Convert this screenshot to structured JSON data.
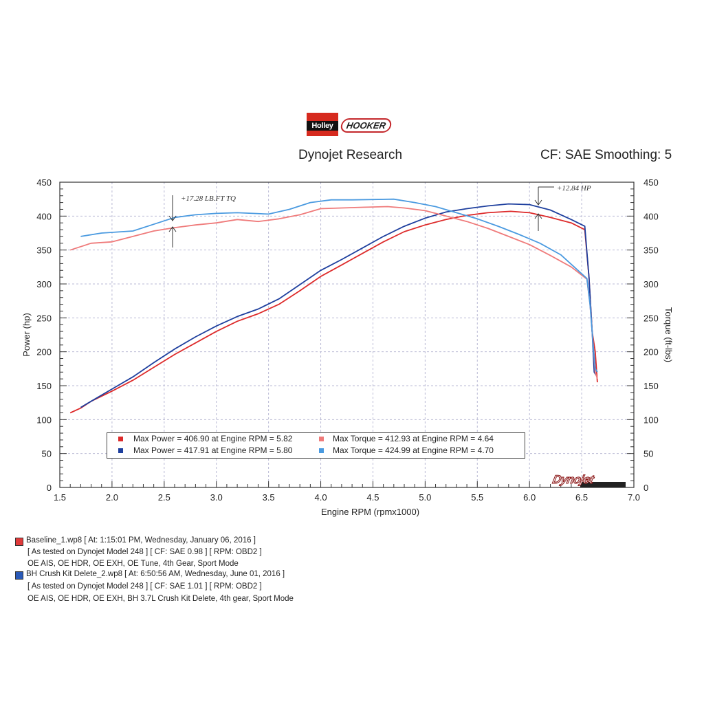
{
  "header": {
    "brand_left": "Holley",
    "brand_right": "HOOKER",
    "title": "Dynojet Research",
    "right_info": "CF: SAE Smoothing: 5"
  },
  "chart_data": {
    "type": "line",
    "x_axis": {
      "label": "Engine RPM (rpmx1000)",
      "range": [
        1.5,
        7.0
      ],
      "ticks": [
        "1.5",
        "2.0",
        "2.5",
        "3.0",
        "3.5",
        "4.0",
        "4.5",
        "5.0",
        "5.5",
        "6.0",
        "6.5",
        "7.0"
      ]
    },
    "y_axis_left": {
      "label": "Power (hp)",
      "range": [
        0,
        450
      ],
      "ticks": [
        "0",
        "50",
        "100",
        "150",
        "200",
        "250",
        "300",
        "350",
        "400",
        "450"
      ]
    },
    "y_axis_right": {
      "label": "Torque (ft-lbs)",
      "range": [
        0,
        450
      ],
      "ticks": [
        "0",
        "50",
        "100",
        "150",
        "200",
        "250",
        "300",
        "350",
        "400",
        "450"
      ]
    },
    "grid": true,
    "colors": {
      "baseline_power": "#dd2a2a",
      "crush_power": "#1e3f9e",
      "baseline_torque": "#ef7a7a",
      "crush_torque": "#4a9ae0"
    },
    "series": [
      {
        "run": "Baseline",
        "measure": "power",
        "points": [
          [
            1.6,
            110
          ],
          [
            1.7,
            117
          ],
          [
            1.8,
            127
          ],
          [
            2.0,
            142
          ],
          [
            2.2,
            158
          ],
          [
            2.4,
            177
          ],
          [
            2.6,
            196
          ],
          [
            2.8,
            213
          ],
          [
            3.0,
            230
          ],
          [
            3.2,
            245
          ],
          [
            3.4,
            256
          ],
          [
            3.6,
            270
          ],
          [
            3.8,
            290
          ],
          [
            4.0,
            311
          ],
          [
            4.2,
            328
          ],
          [
            4.4,
            345
          ],
          [
            4.6,
            362
          ],
          [
            4.8,
            377
          ],
          [
            5.0,
            387
          ],
          [
            5.2,
            395
          ],
          [
            5.4,
            401
          ],
          [
            5.6,
            405
          ],
          [
            5.82,
            407
          ],
          [
            6.0,
            405
          ],
          [
            6.2,
            398
          ],
          [
            6.4,
            390
          ],
          [
            6.53,
            380
          ],
          [
            6.57,
            310
          ],
          [
            6.6,
            230
          ],
          [
            6.63,
            200
          ],
          [
            6.65,
            155
          ]
        ]
      },
      {
        "run": "BH Crush Kit Delete",
        "measure": "power",
        "points": [
          [
            1.7,
            118
          ],
          [
            1.8,
            127
          ],
          [
            2.0,
            145
          ],
          [
            2.2,
            163
          ],
          [
            2.4,
            184
          ],
          [
            2.6,
            204
          ],
          [
            2.8,
            222
          ],
          [
            3.0,
            238
          ],
          [
            3.2,
            252
          ],
          [
            3.4,
            263
          ],
          [
            3.6,
            278
          ],
          [
            3.8,
            299
          ],
          [
            4.0,
            320
          ],
          [
            4.2,
            336
          ],
          [
            4.4,
            353
          ],
          [
            4.6,
            370
          ],
          [
            4.8,
            385
          ],
          [
            5.0,
            397
          ],
          [
            5.2,
            406
          ],
          [
            5.4,
            411
          ],
          [
            5.6,
            415
          ],
          [
            5.8,
            418
          ],
          [
            6.0,
            417
          ],
          [
            6.2,
            409
          ],
          [
            6.4,
            395
          ],
          [
            6.53,
            385
          ],
          [
            6.57,
            310
          ],
          [
            6.6,
            230
          ],
          [
            6.62,
            170
          ],
          [
            6.64,
            165
          ]
        ]
      },
      {
        "run": "Baseline",
        "measure": "torque",
        "points": [
          [
            1.6,
            350
          ],
          [
            1.8,
            360
          ],
          [
            2.0,
            362
          ],
          [
            2.2,
            370
          ],
          [
            2.4,
            378
          ],
          [
            2.6,
            383
          ],
          [
            2.8,
            387
          ],
          [
            3.0,
            390
          ],
          [
            3.2,
            395
          ],
          [
            3.4,
            392
          ],
          [
            3.6,
            396
          ],
          [
            3.8,
            402
          ],
          [
            4.0,
            411
          ],
          [
            4.2,
            412
          ],
          [
            4.4,
            413
          ],
          [
            4.64,
            414
          ],
          [
            4.8,
            412
          ],
          [
            5.0,
            408
          ],
          [
            5.2,
            400
          ],
          [
            5.4,
            392
          ],
          [
            5.6,
            382
          ],
          [
            5.8,
            370
          ],
          [
            6.0,
            358
          ],
          [
            6.2,
            342
          ],
          [
            6.4,
            325
          ],
          [
            6.55,
            307
          ],
          [
            6.58,
            270
          ],
          [
            6.61,
            210
          ],
          [
            6.63,
            170
          ],
          [
            6.65,
            160
          ]
        ]
      },
      {
        "run": "BH Crush Kit Delete",
        "measure": "torque",
        "points": [
          [
            1.7,
            370
          ],
          [
            1.9,
            375
          ],
          [
            2.2,
            378
          ],
          [
            2.4,
            388
          ],
          [
            2.6,
            398
          ],
          [
            2.8,
            402
          ],
          [
            3.0,
            404
          ],
          [
            3.2,
            405
          ],
          [
            3.5,
            403
          ],
          [
            3.7,
            410
          ],
          [
            3.9,
            420
          ],
          [
            4.1,
            424
          ],
          [
            4.3,
            424
          ],
          [
            4.7,
            425
          ],
          [
            4.9,
            420
          ],
          [
            5.1,
            414
          ],
          [
            5.3,
            405
          ],
          [
            5.5,
            396
          ],
          [
            5.7,
            385
          ],
          [
            5.9,
            373
          ],
          [
            6.1,
            360
          ],
          [
            6.3,
            343
          ],
          [
            6.45,
            322
          ],
          [
            6.55,
            308
          ],
          [
            6.58,
            270
          ],
          [
            6.61,
            210
          ],
          [
            6.63,
            175
          ],
          [
            6.65,
            170
          ]
        ]
      }
    ],
    "legend": [
      {
        "text": "Max Power = 406.90 at Engine RPM = 5.82",
        "color": "#dd2a2a"
      },
      {
        "text": "Max Torque = 412.93 at Engine RPM = 4.64",
        "color": "#ef7a7a"
      },
      {
        "text": "Max Power = 417.91 at Engine RPM = 5.80",
        "color": "#1e3f9e"
      },
      {
        "text": "Max Torque = 424.99 at Engine RPM = 4.70",
        "color": "#4a9ae0"
      }
    ],
    "annotations": [
      "+17.28 LB.FT TQ",
      "+12.84 HP"
    ]
  },
  "watermark": "Dynojet",
  "runs": [
    {
      "color": "#e03a3a",
      "lines": [
        "Baseline_1.wp8 [ At: 1:15:01 PM, Wednesday, January 06, 2016 ]",
        "[ As tested on Dynojet Model 248 ]  [ CF: SAE 0.98 ]  [ RPM: OBD2 ]",
        "OE AIS, OE HDR, OE EXH, OE Tune, 4th Gear, Sport Mode"
      ]
    },
    {
      "color": "#2a5ab8",
      "lines": [
        "BH Crush Kit Delete_2.wp8 [ At: 6:50:56 AM, Wednesday, June 01, 2016 ]",
        "[ As tested on Dynojet Model 248 ]  [ CF: SAE 1.01 ]  [ RPM: OBD2 ]",
        "OE AIS, OE HDR, OE EXH, BH 3.7L Crush Kit Delete, 4th gear, Sport Mode"
      ]
    }
  ]
}
